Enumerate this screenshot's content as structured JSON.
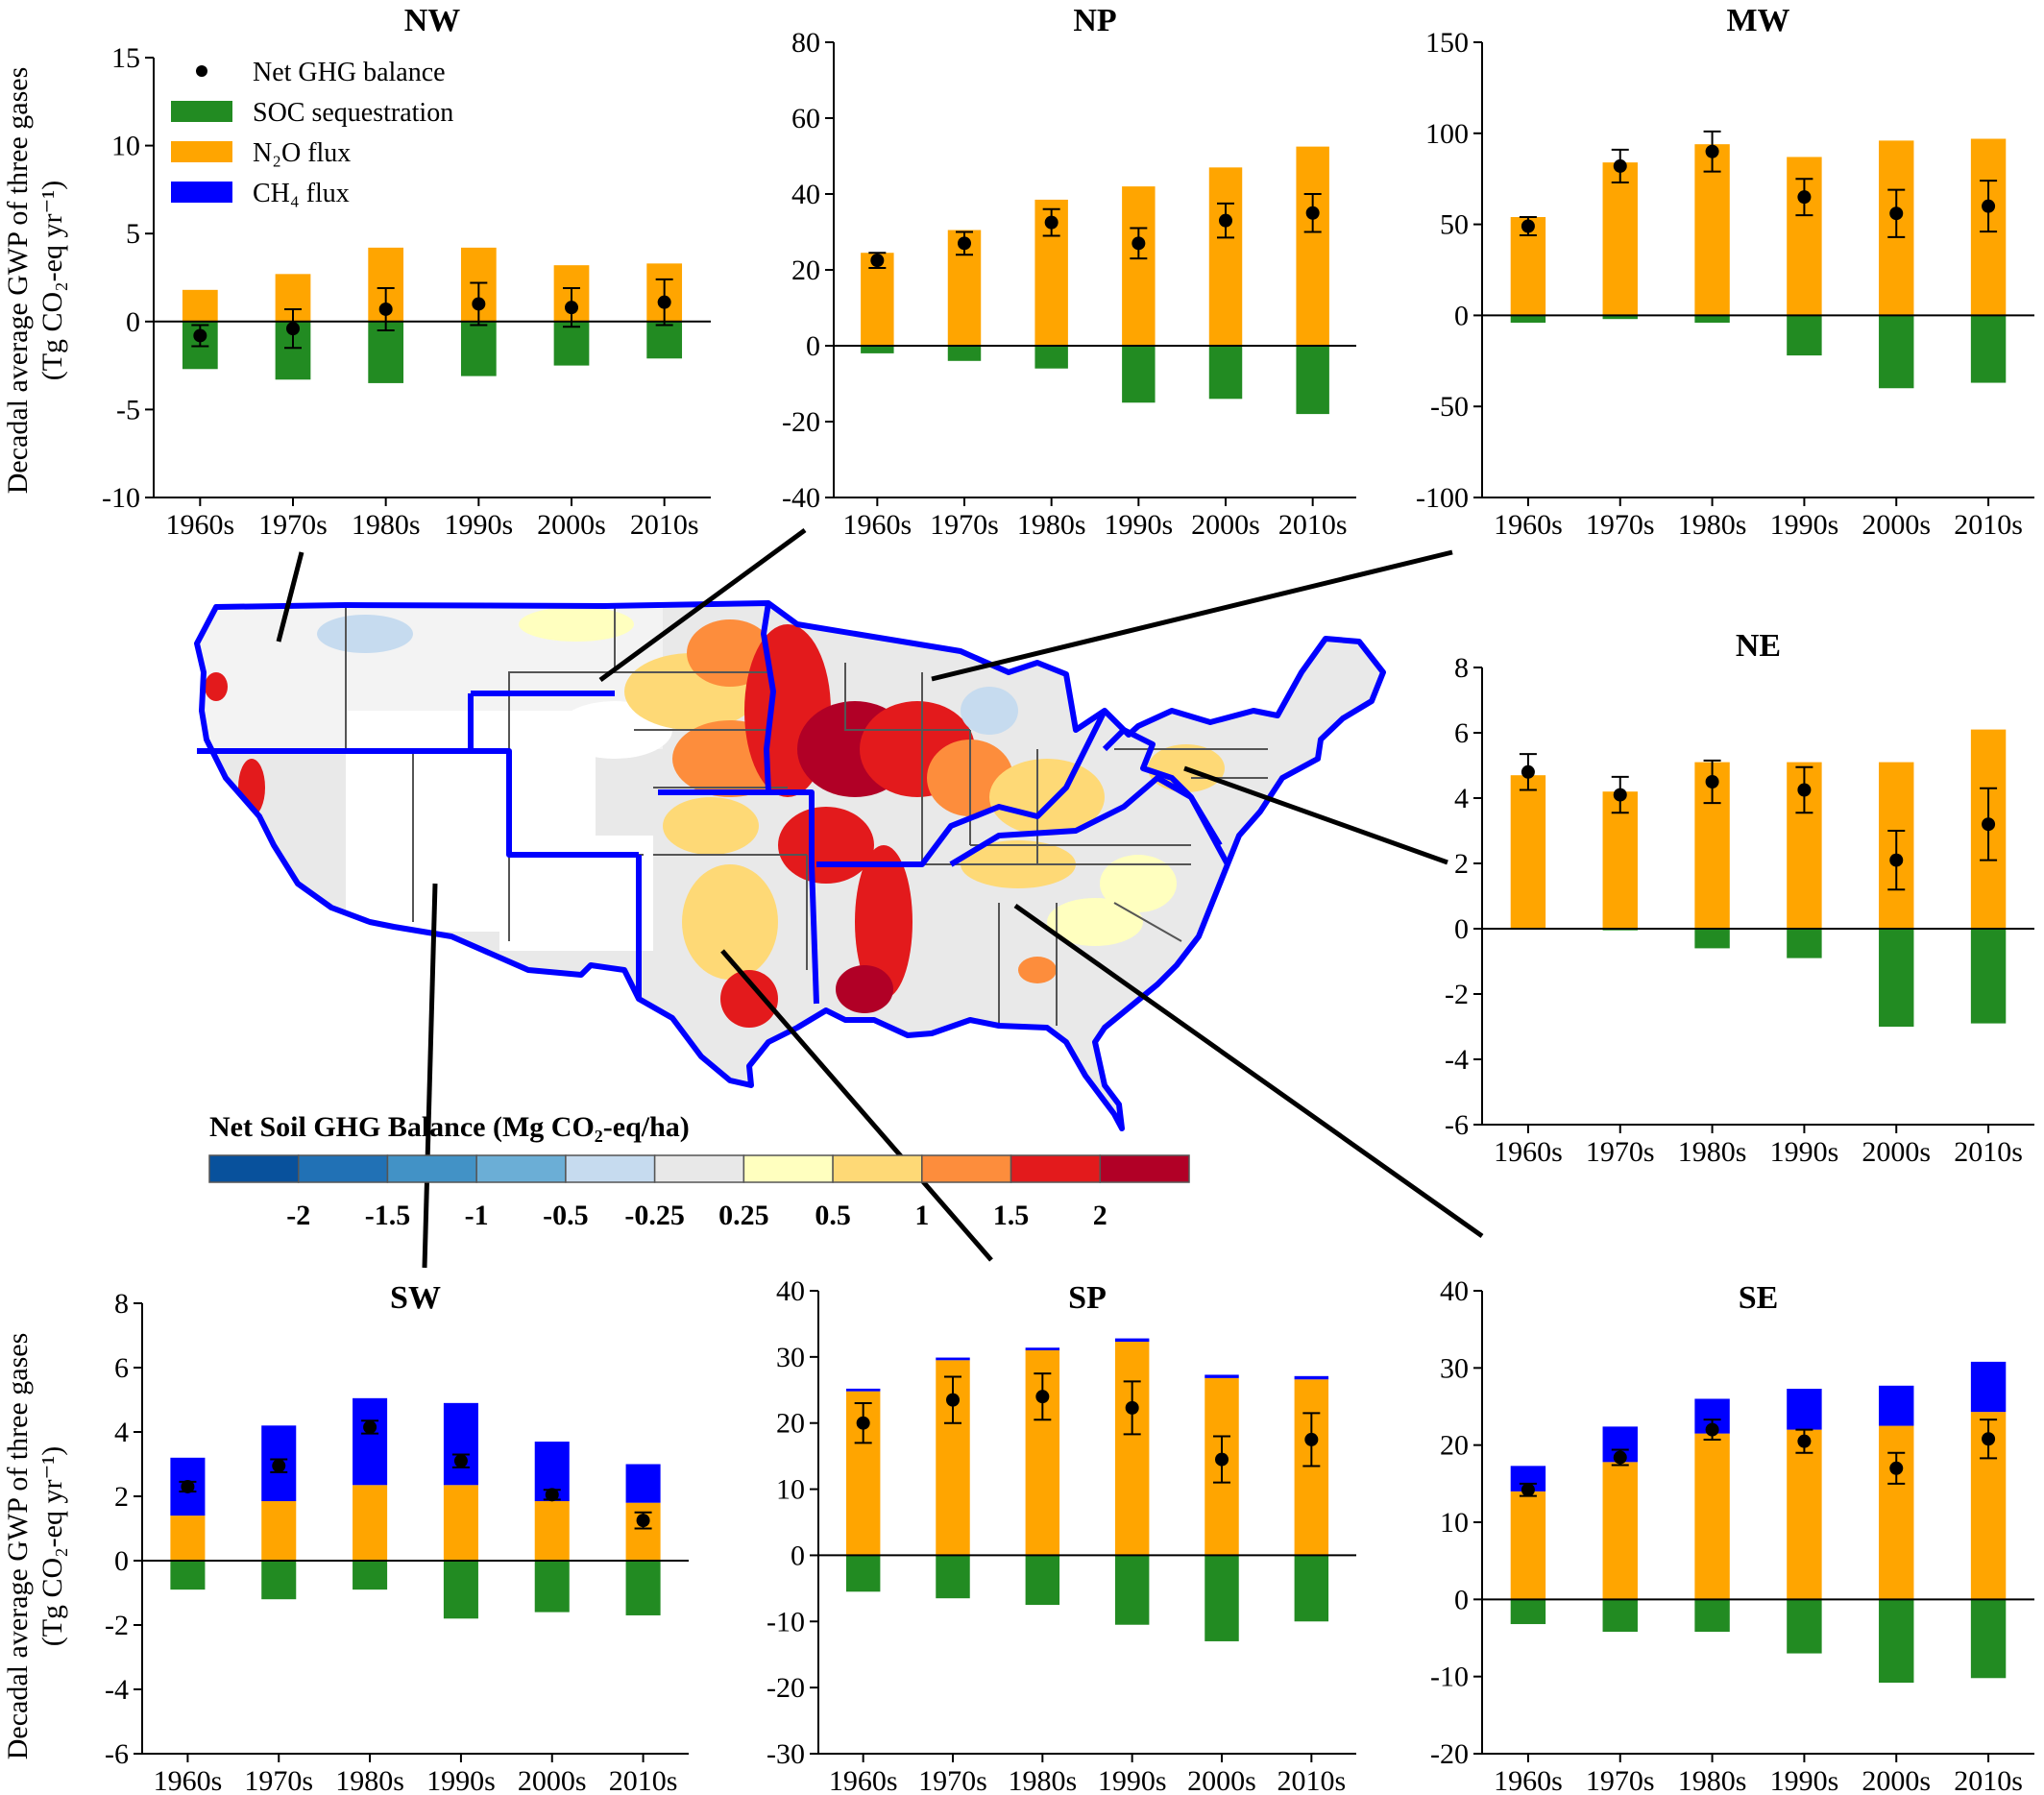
{
  "figure": {
    "y_axis_title_line1": "Decadal average GWP of three gases",
    "y_axis_title_line2": "(Tg CO₂-eq yr⁻¹)"
  },
  "legend": {
    "items": [
      {
        "key": "net",
        "label": "Net GHG balance",
        "color": "#000000",
        "marker": "dot"
      },
      {
        "key": "soc",
        "label": "SOC sequestration",
        "color": "#228b22",
        "marker": "bar"
      },
      {
        "key": "n2o",
        "label": "N₂O flux",
        "color": "#ffa500",
        "marker": "bar"
      },
      {
        "key": "ch4",
        "label": "CH₄ flux",
        "color": "#0000ff",
        "marker": "bar"
      }
    ]
  },
  "colorbar": {
    "title": "Net Soil GHG Balance (Mg CO₂-eq/ha)",
    "colors": [
      "#08519c",
      "#2171b5",
      "#4292c6",
      "#6baed6",
      "#c6dbef",
      "#e8e8e8",
      "#ffffbf",
      "#fed976",
      "#fd8d3c",
      "#e31a1c",
      "#b10026"
    ],
    "labels": [
      "-2",
      "-1.5",
      "-1",
      "-0.5",
      "-0.25",
      "0.25",
      "0.5",
      "1",
      "1.5",
      "2"
    ]
  },
  "map": {
    "outline_color": "#0000ff"
  },
  "chart_data": [
    {
      "type": "bar",
      "title": "NW",
      "categories": [
        "1960s",
        "1970s",
        "1980s",
        "1990s",
        "2000s",
        "2010s"
      ],
      "ylim": [
        -10,
        15
      ],
      "yticks": [
        -10,
        -5,
        0,
        5,
        10,
        15
      ],
      "series": [
        {
          "name": "SOC sequestration",
          "values": [
            -2.7,
            -3.3,
            -3.5,
            -3.1,
            -2.5,
            -2.1
          ]
        },
        {
          "name": "N₂O flux",
          "values": [
            1.8,
            2.7,
            4.2,
            4.2,
            3.2,
            3.3
          ]
        },
        {
          "name": "CH₄ flux",
          "values": [
            0,
            0,
            0,
            0,
            0,
            0
          ]
        },
        {
          "name": "Net GHG balance",
          "values": [
            -0.8,
            -0.4,
            0.7,
            1.0,
            0.8,
            1.1
          ],
          "error": [
            0.6,
            1.1,
            1.2,
            1.2,
            1.1,
            1.3
          ]
        }
      ]
    },
    {
      "type": "bar",
      "title": "NP",
      "categories": [
        "1960s",
        "1970s",
        "1980s",
        "1990s",
        "2000s",
        "2010s"
      ],
      "ylim": [
        -40,
        80
      ],
      "yticks": [
        -40,
        -20,
        0,
        20,
        40,
        60,
        80
      ],
      "series": [
        {
          "name": "SOC sequestration",
          "values": [
            -2,
            -4,
            -6,
            -15,
            -14,
            -18
          ]
        },
        {
          "name": "N₂O flux",
          "values": [
            24.5,
            30.5,
            38.5,
            42,
            47,
            52.5
          ]
        },
        {
          "name": "CH₄ flux",
          "values": [
            0,
            0,
            0,
            0,
            0,
            0
          ]
        },
        {
          "name": "Net GHG balance",
          "values": [
            22.5,
            27,
            32.5,
            27,
            33,
            35
          ],
          "error": [
            2,
            3,
            3.5,
            4,
            4.5,
            5
          ]
        }
      ]
    },
    {
      "type": "bar",
      "title": "MW",
      "categories": [
        "1960s",
        "1970s",
        "1980s",
        "1990s",
        "2000s",
        "2010s"
      ],
      "ylim": [
        -100,
        150
      ],
      "yticks": [
        -100,
        -50,
        0,
        50,
        100,
        150
      ],
      "series": [
        {
          "name": "SOC sequestration",
          "values": [
            -4,
            -2,
            -4,
            -22,
            -40,
            -37
          ]
        },
        {
          "name": "N₂O flux",
          "values": [
            54,
            84,
            94,
            87,
            96,
            97
          ]
        },
        {
          "name": "CH₄ flux",
          "values": [
            0,
            0,
            0,
            0,
            0,
            0
          ]
        },
        {
          "name": "Net GHG balance",
          "values": [
            49,
            82,
            90,
            65,
            56,
            60
          ],
          "error": [
            5,
            9,
            11,
            10,
            13,
            14
          ]
        }
      ]
    },
    {
      "type": "bar",
      "title": "NE",
      "categories": [
        "1960s",
        "1970s",
        "1980s",
        "1990s",
        "2000s",
        "2010s"
      ],
      "ylim": [
        -6,
        8
      ],
      "yticks": [
        -6,
        -4,
        -2,
        0,
        2,
        4,
        6,
        8
      ],
      "series": [
        {
          "name": "SOC sequestration",
          "values": [
            0,
            -0.05,
            -0.6,
            -0.9,
            -3,
            -2.9
          ]
        },
        {
          "name": "N₂O flux",
          "values": [
            4.7,
            4.2,
            5.1,
            5.1,
            5.1,
            6.1
          ]
        },
        {
          "name": "CH₄ flux",
          "values": [
            0,
            0,
            0,
            0,
            0,
            0
          ]
        },
        {
          "name": "Net GHG balance",
          "values": [
            4.8,
            4.1,
            4.5,
            4.25,
            2.1,
            3.2
          ],
          "error": [
            0.55,
            0.55,
            0.65,
            0.7,
            0.9,
            1.1
          ]
        }
      ]
    },
    {
      "type": "bar",
      "title": "SW",
      "categories": [
        "1960s",
        "1970s",
        "1980s",
        "1990s",
        "2000s",
        "2010s"
      ],
      "ylim": [
        -6,
        8
      ],
      "yticks": [
        -6,
        -4,
        -2,
        0,
        2,
        4,
        6,
        8
      ],
      "series": [
        {
          "name": "SOC sequestration",
          "values": [
            -0.9,
            -1.2,
            -0.9,
            -1.8,
            -1.6,
            -1.7
          ]
        },
        {
          "name": "N₂O flux",
          "values": [
            1.4,
            1.85,
            2.35,
            2.35,
            1.85,
            1.8
          ]
        },
        {
          "name": "CH₄ flux",
          "values": [
            1.8,
            2.35,
            2.7,
            2.55,
            1.85,
            1.2
          ]
        },
        {
          "name": "Net GHG balance",
          "values": [
            2.3,
            2.95,
            4.15,
            3.1,
            2.05,
            1.25
          ],
          "error": [
            0.15,
            0.2,
            0.2,
            0.2,
            0.15,
            0.25
          ]
        }
      ]
    },
    {
      "type": "bar",
      "title": "SP",
      "categories": [
        "1960s",
        "1970s",
        "1980s",
        "1990s",
        "2000s",
        "2010s"
      ],
      "ylim": [
        -30,
        40
      ],
      "yticks": [
        -30,
        -20,
        -10,
        0,
        10,
        20,
        30,
        40
      ],
      "series": [
        {
          "name": "SOC sequestration",
          "values": [
            -5.5,
            -6.5,
            -7.5,
            -10.5,
            -13,
            -10
          ]
        },
        {
          "name": "N₂O flux",
          "values": [
            24.8,
            29.5,
            31,
            32.3,
            26.8,
            26.6
          ]
        },
        {
          "name": "CH₄ flux",
          "values": [
            0.4,
            0.4,
            0.4,
            0.5,
            0.5,
            0.5
          ]
        },
        {
          "name": "Net GHG balance",
          "values": [
            20,
            23.5,
            24,
            22.3,
            14.5,
            17.5
          ],
          "error": [
            3,
            3.5,
            3.5,
            4,
            3.5,
            4
          ]
        }
      ]
    },
    {
      "type": "bar",
      "title": "SE",
      "categories": [
        "1960s",
        "1970s",
        "1980s",
        "1990s",
        "2000s",
        "2010s"
      ],
      "ylim": [
        -20,
        40
      ],
      "yticks": [
        -20,
        -10,
        0,
        10,
        20,
        30,
        40
      ],
      "series": [
        {
          "name": "SOC sequestration",
          "values": [
            -3.2,
            -4.2,
            -4.2,
            -7,
            -10.8,
            -10.2
          ]
        },
        {
          "name": "N₂O flux",
          "values": [
            14,
            17.8,
            21.5,
            22,
            22.5,
            24.3
          ]
        },
        {
          "name": "CH₄ flux",
          "values": [
            3.3,
            4.6,
            4.5,
            5.3,
            5.2,
            6.5
          ]
        },
        {
          "name": "Net GHG balance",
          "values": [
            14.2,
            18.4,
            22,
            20.5,
            17,
            20.8
          ],
          "error": [
            0.8,
            1,
            1.3,
            1.5,
            2,
            2.5
          ]
        }
      ]
    }
  ]
}
